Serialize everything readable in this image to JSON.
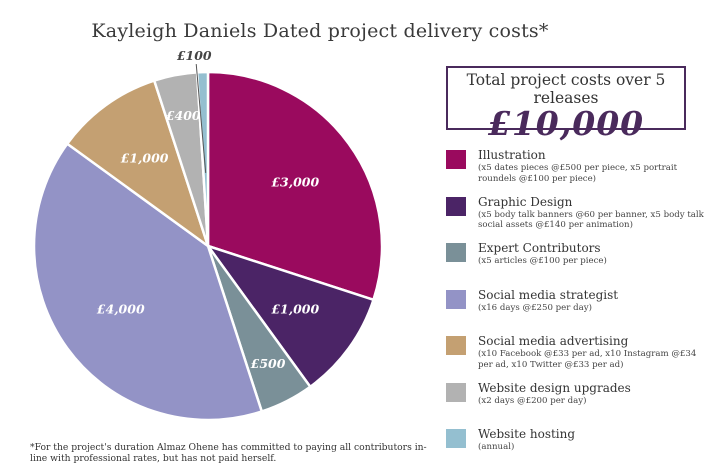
{
  "chart_data": {
    "type": "pie",
    "title": "Kayleigh Daniels Dated project delivery costs*",
    "slices": [
      {
        "name": "Illustration",
        "value": 3000,
        "label": "£3,000",
        "color": "#9a0a5e",
        "desc": "(x5 dates pieces @£500 per piece, x5 portrait roundels @£100 per piece)"
      },
      {
        "name": "Graphic Design",
        "value": 1000,
        "label": "£1,000",
        "color": "#4b2466",
        "desc": "(x5 body talk banners @60 per banner, x5 body talk social assets @£140 per animation)"
      },
      {
        "name": "Expert Contributors",
        "value": 500,
        "label": "£500",
        "color": "#7a9098",
        "desc": "(x5 articles @£100 per piece)"
      },
      {
        "name": "Social media strategist",
        "value": 4000,
        "label": "£4,000",
        "color": "#9393c6",
        "desc": "(x16 days @£250 per day)"
      },
      {
        "name": "Social media advertising",
        "value": 1000,
        "label": "£1,000",
        "color": "#c4a072",
        "desc": "(x10 Facebook @£33 per ad, x10 Instagram @£34 per ad, x10 Twitter @£33 per ad)"
      },
      {
        "name": "Website design upgrades",
        "value": 400,
        "label": "£400",
        "color": "#b2b2b2",
        "desc": "(x2 days @£200 per day)"
      },
      {
        "name": "Website hosting",
        "value": 100,
        "label": "£100",
        "color": "#94bfd0",
        "desc": "(annual)"
      }
    ],
    "legend_position": "right"
  },
  "total": {
    "label": "Total project costs over 5 releases",
    "value": "£10,000"
  },
  "footnote": "*For the project's duration Almaz Ohene has committed to paying all contributors in-line with professional rates, but has not paid herself."
}
